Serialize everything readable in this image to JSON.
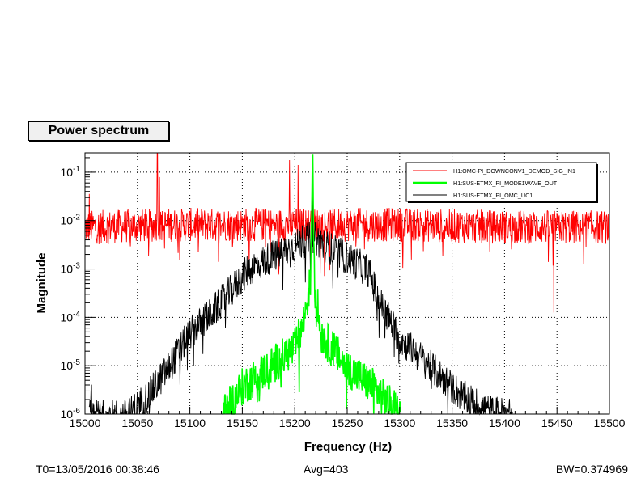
{
  "chart_data": {
    "type": "line",
    "title": "Power spectrum",
    "xlabel": "Frequency (Hz)",
    "ylabel": "Magnitude",
    "xlim": [
      15000,
      15500
    ],
    "ylim_log10": [
      -6,
      -0.6
    ],
    "yscale": "log",
    "grid": true,
    "legend_position": "top-right",
    "x_ticks": [
      {
        "value": 15000,
        "label": "15000"
      },
      {
        "value": 15050,
        "label": "15050"
      },
      {
        "value": 15100,
        "label": "15100"
      },
      {
        "value": 15150,
        "label": "15150"
      },
      {
        "value": 15200,
        "label": "15200"
      },
      {
        "value": 15250,
        "label": "15250"
      },
      {
        "value": 15300,
        "label": "15300"
      },
      {
        "value": 15350,
        "label": "15350"
      },
      {
        "value": 15400,
        "label": "15400"
      },
      {
        "value": 15450,
        "label": "15450"
      },
      {
        "value": 15500,
        "label": "15500"
      }
    ],
    "y_ticks": [
      {
        "exp": -1,
        "base": "10",
        "sup": "-1"
      },
      {
        "exp": -2,
        "base": "10",
        "sup": "-2"
      },
      {
        "exp": -3,
        "base": "10",
        "sup": "-3"
      },
      {
        "exp": -4,
        "base": "10",
        "sup": "-4"
      },
      {
        "exp": -5,
        "base": "10",
        "sup": "-5"
      },
      {
        "exp": -6,
        "base": "10",
        "sup": "-6"
      }
    ],
    "series": [
      {
        "name": "H1:OMC-PI_DOWNCONV1_DEMOD_SIG_IN1",
        "color": "#ff0000",
        "range": [
          15000,
          15500
        ],
        "profile": [
          [
            15000,
            -2.1
          ],
          [
            15100,
            -2.05
          ],
          [
            15200,
            -2.05
          ],
          [
            15300,
            -2.05
          ],
          [
            15400,
            -2.1
          ],
          [
            15500,
            -2.1
          ]
        ],
        "noise": 0.35,
        "peaks": [
          [
            15004,
            -1.45
          ],
          [
            15069,
            -0.6
          ],
          [
            15071,
            -1.1
          ],
          [
            15195,
            -0.75
          ],
          [
            15203,
            -0.85
          ],
          [
            15217,
            -0.65
          ],
          [
            15447,
            -3.9
          ]
        ]
      },
      {
        "name": "H1:SUS-ETMX_PI_MODE1WAVE_OUT",
        "color": "#00ff00",
        "range": [
          15131,
          15301
        ],
        "profile": [
          [
            15131,
            -6.0
          ],
          [
            15150,
            -5.4
          ],
          [
            15175,
            -5.0
          ],
          [
            15200,
            -4.6
          ],
          [
            15208,
            -4.1
          ],
          [
            15215,
            -3.2
          ],
          [
            15217,
            -0.65
          ],
          [
            15219,
            -3.2
          ],
          [
            15225,
            -4.3
          ],
          [
            15250,
            -5.0
          ],
          [
            15275,
            -5.4
          ],
          [
            15301,
            -6.0
          ]
        ],
        "noise": 0.4,
        "peaks": [
          [
            15217,
            -0.65
          ],
          [
            15216,
            -1.9
          ],
          [
            15218,
            -2.4
          ]
        ]
      },
      {
        "name": "H1:SUS-ETMX_PI_OMC_UC1",
        "color": "#000000",
        "range": [
          15004,
          15408
        ],
        "profile": [
          [
            15004,
            -6.0
          ],
          [
            15040,
            -6.0
          ],
          [
            15060,
            -5.6
          ],
          [
            15080,
            -5.0
          ],
          [
            15100,
            -4.3
          ],
          [
            15120,
            -3.9
          ],
          [
            15140,
            -3.4
          ],
          [
            15155,
            -3.0
          ],
          [
            15170,
            -2.8
          ],
          [
            15200,
            -2.5
          ],
          [
            15217,
            -2.3
          ],
          [
            15230,
            -2.5
          ],
          [
            15255,
            -2.8
          ],
          [
            15270,
            -3.0
          ],
          [
            15280,
            -3.6
          ],
          [
            15300,
            -4.4
          ],
          [
            15320,
            -4.8
          ],
          [
            15340,
            -5.2
          ],
          [
            15360,
            -5.6
          ],
          [
            15385,
            -5.9
          ],
          [
            15408,
            -6.0
          ]
        ],
        "noise": 0.35,
        "peaks": [
          [
            15217,
            -1.0
          ],
          [
            15207,
            -2.1
          ],
          [
            15225,
            -2.2
          ],
          [
            15006,
            -5.4
          ]
        ]
      }
    ]
  },
  "footer": {
    "t0": "T0=13/05/2016 00:38:46",
    "avg": "Avg=403",
    "bw": "BW=0.374969"
  }
}
